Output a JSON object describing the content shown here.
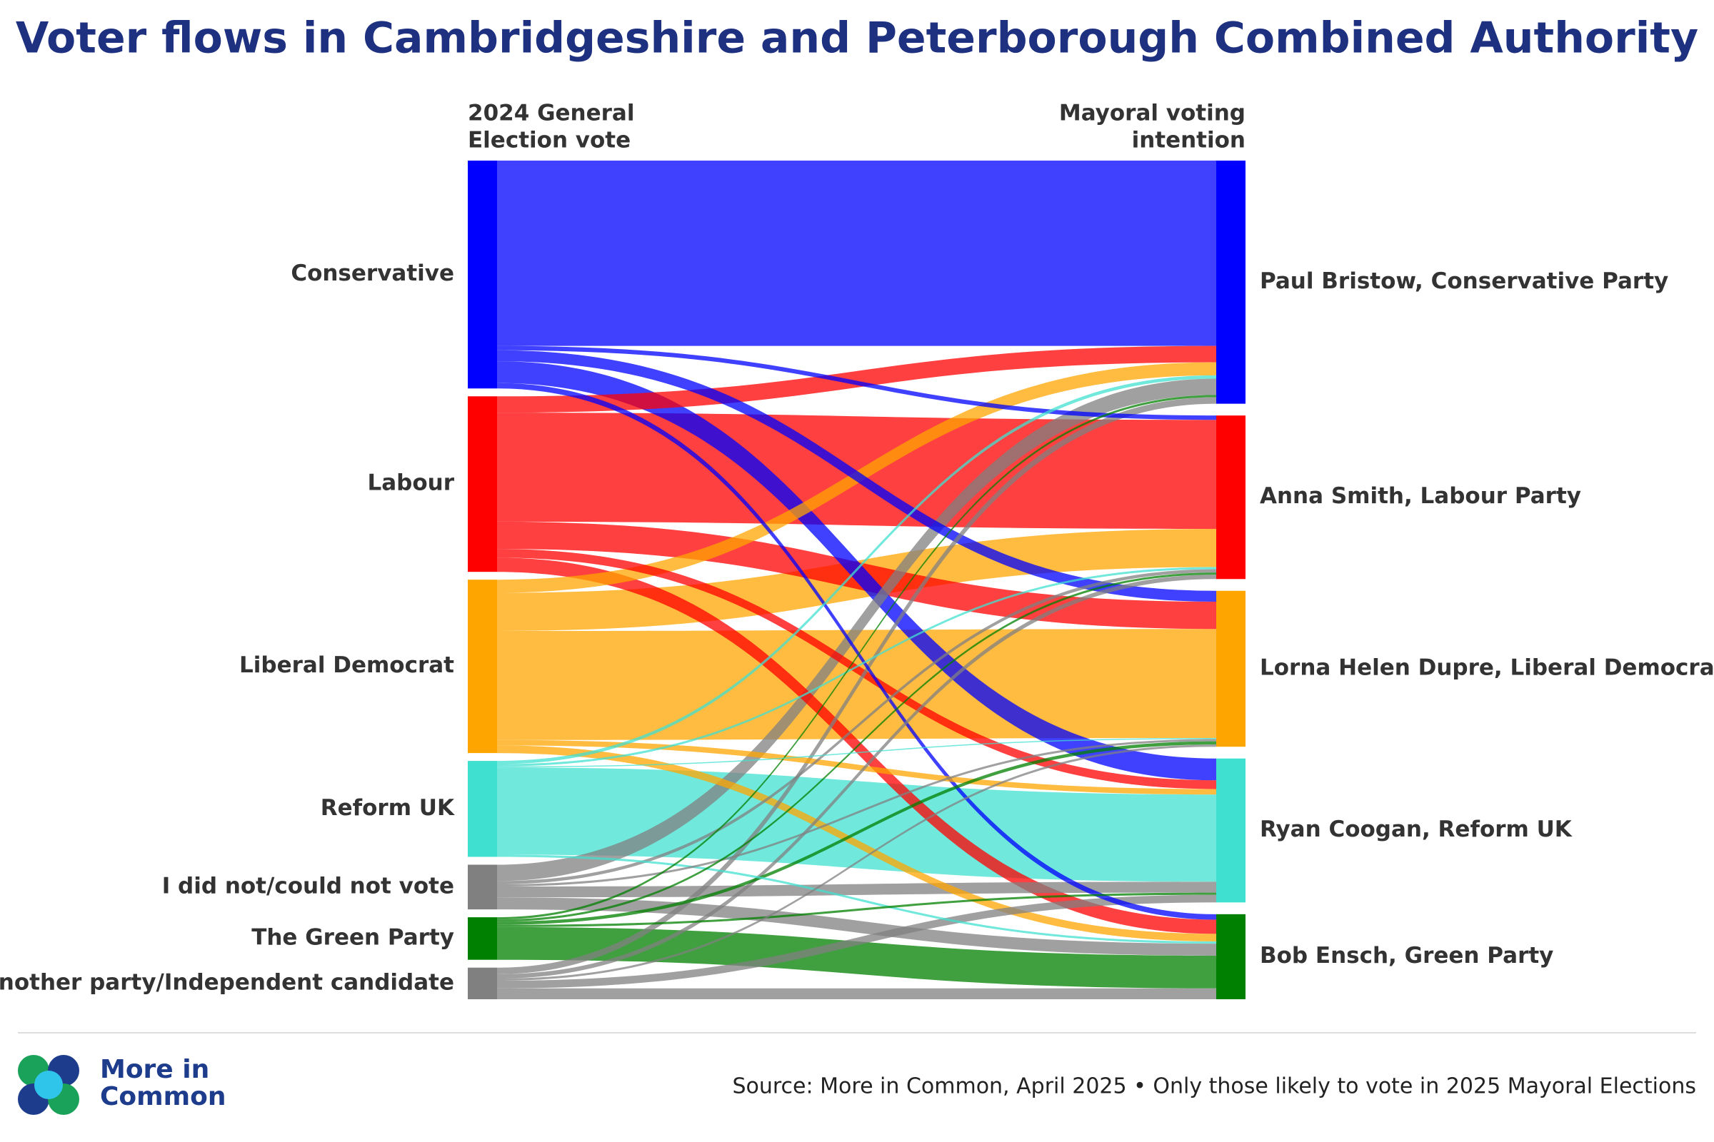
{
  "chart_data": {
    "type": "sankey",
    "title": "Voter flows in Cambridgeshire and Peterborough Combined Authority",
    "left_heading": [
      "2024 General",
      "Election vote"
    ],
    "right_heading": [
      "Mayoral voting",
      "intention"
    ],
    "sources": [
      {
        "name": "Conservative",
        "color": "#0000ff"
      },
      {
        "name": "Labour",
        "color": "#ff0000"
      },
      {
        "name": "Liberal Democrat",
        "color": "#ffa500"
      },
      {
        "name": "Reform UK",
        "color": "#40e0d0"
      },
      {
        "name": "I did not/could not vote",
        "color": "#808080"
      },
      {
        "name": "The Green Party",
        "color": "#008000"
      },
      {
        "name": "Another party/Independent candidate",
        "color": "#808080"
      }
    ],
    "targets": [
      {
        "name": "Paul Bristow, Conservative Party",
        "color": "#0000ff"
      },
      {
        "name": "Anna Smith, Labour Party",
        "color": "#ff0000"
      },
      {
        "name": "Lorna Helen Dupre, Liberal Democrats",
        "color": "#ffa500"
      },
      {
        "name": "Ryan Coogan, Reform UK",
        "color": "#40e0d0"
      },
      {
        "name": "Bob Ensch, Green Party",
        "color": "#008000"
      }
    ],
    "flows": [
      [
        170,
        4,
        10,
        20,
        5
      ],
      [
        15,
        100,
        25,
        8,
        13
      ],
      [
        12,
        35,
        100,
        5,
        7
      ],
      [
        3,
        2,
        1,
        80,
        2
      ],
      [
        15,
        3,
        2,
        10,
        11
      ],
      [
        2,
        2,
        3,
        2,
        30
      ],
      [
        6,
        4,
        2,
        7,
        10
      ]
    ],
    "source_note": "Source: More in Common, April 2025 • Only those likely to vote in 2025 Mayoral Elections",
    "logo_text": [
      "More in",
      "Common"
    ]
  }
}
